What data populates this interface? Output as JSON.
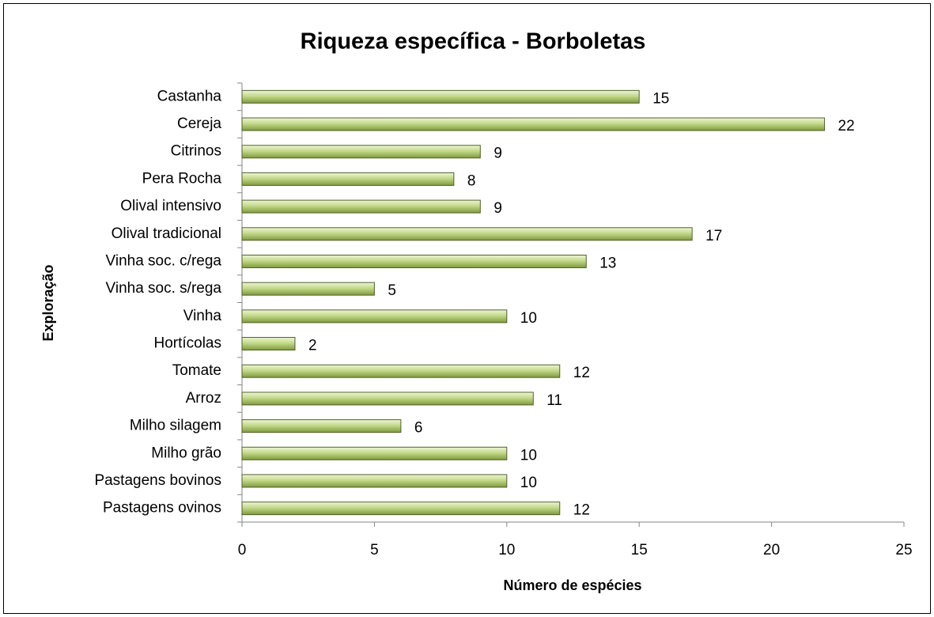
{
  "chart_data": {
    "type": "bar",
    "orientation": "horizontal",
    "title": "Riqueza específica - Borboletas",
    "x_label": "Número de espécies",
    "y_label": "Exploração",
    "categories": [
      "Castanha",
      "Cereja",
      "Citrinos",
      "Pera Rocha",
      "Olival intensivo",
      "Olival tradicional",
      "Vinha soc. c/rega",
      "Vinha soc. s/rega",
      "Vinha",
      "Hortícolas",
      "Tomate",
      "Arroz",
      "Milho silagem",
      "Milho grão",
      "Pastagens bovinos",
      "Pastagens ovinos"
    ],
    "values": [
      15,
      22,
      9,
      8,
      9,
      17,
      13,
      5,
      10,
      2,
      12,
      11,
      6,
      10,
      10,
      12
    ],
    "color": "#9bbb59",
    "xlim": [
      0,
      25
    ],
    "xticks": [
      0,
      5,
      10,
      15,
      20,
      25
    ],
    "grid": false
  }
}
